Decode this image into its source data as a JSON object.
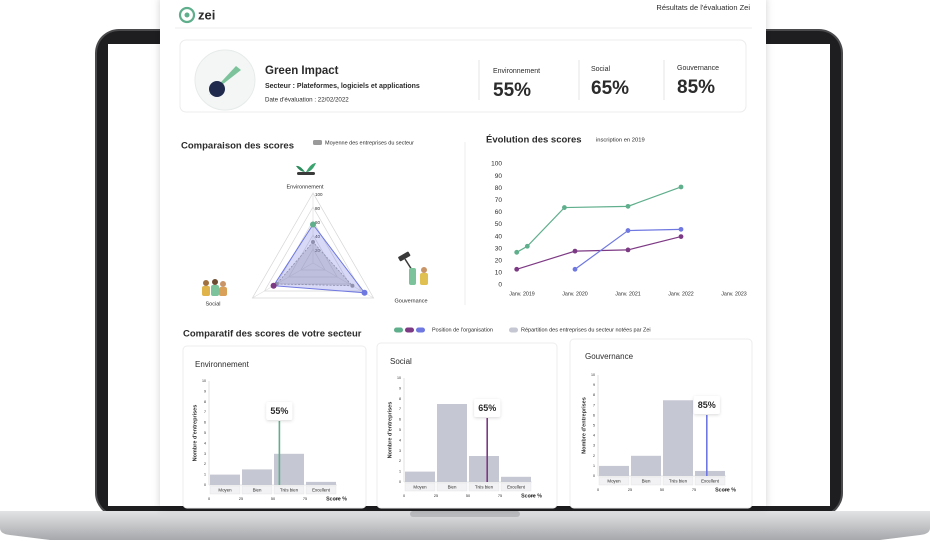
{
  "header": {
    "logo": "zei",
    "title": "Résultats de l'évaluation Zei"
  },
  "company": {
    "name": "Green Impact",
    "sector": "Secteur : Plateformes, logiciels et applications",
    "date": "Date d'évaluation : 22/02/2022"
  },
  "scores": [
    {
      "label": "Environnement",
      "value": "55%",
      "color": "#5fae8c"
    },
    {
      "label": "Social",
      "value": "65%",
      "color": "#7d3a84"
    },
    {
      "label": "Gouvernance",
      "value": "85%",
      "color": "#6f78e0"
    }
  ],
  "sections": {
    "comparison": "Comparatif des scores de votre secteur",
    "position_legend": "Position de l'organisation",
    "distribution_legend": "Répartition des entreprises du secteur notées par Zei",
    "distribution_color": "#c5c7d3"
  },
  "chart_data": [
    {
      "type": "radar",
      "title": "Comparaison des scores",
      "axes": [
        "Environnement",
        "Social",
        "Gouvernance"
      ],
      "ylim": [
        0,
        100
      ],
      "yticks": [
        20,
        40,
        60,
        80,
        100
      ],
      "series": [
        {
          "name": "Moyenne des entreprises du secteur",
          "color": "#9a9a9a",
          "values": [
            30,
            60,
            65
          ]
        },
        {
          "color": "#6f78e0",
          "values": [
            55,
            65,
            85
          ],
          "point_colors": [
            "#5fae8c",
            "#7d3a84",
            "#6f78e0"
          ]
        }
      ]
    },
    {
      "type": "line",
      "title": "Évolution des scores",
      "subtitle": "inscription en 2019",
      "xlim": [
        2018.8,
        2023.2
      ],
      "xticks": [
        {
          "value": 2019,
          "label": "Janv. 2019"
        },
        {
          "value": 2020,
          "label": "Janv. 2020"
        },
        {
          "value": 2021,
          "label": "Janv. 2021"
        },
        {
          "value": 2022,
          "label": "Janv. 2022"
        },
        {
          "value": 2023,
          "label": "Janv. 2023"
        }
      ],
      "ylim": [
        0,
        100
      ],
      "yticks": [
        0,
        10,
        20,
        30,
        40,
        50,
        60,
        70,
        80,
        90,
        100
      ],
      "series": [
        {
          "color": "#5fae8c",
          "x": [
            2018.9,
            2019.1,
            2019.8,
            2021,
            2022
          ],
          "values": [
            27,
            32,
            64,
            65,
            81
          ]
        },
        {
          "color": "#7d3a84",
          "x": [
            2018.9,
            2020,
            2021,
            2022
          ],
          "values": [
            13,
            28,
            29,
            40
          ]
        },
        {
          "color": "#6f78e0",
          "x": [
            2020,
            2021,
            2022
          ],
          "values": [
            13,
            45,
            46
          ]
        }
      ]
    },
    {
      "type": "histogram",
      "title": "Environnement",
      "ylabel": "Nombre d'entreprises",
      "xlabel": "Score %",
      "bins": [
        0,
        25,
        50,
        75,
        100
      ],
      "values": [
        1,
        1.5,
        3,
        0.3
      ],
      "categories": [
        "Moyen",
        "Bien",
        "Très bien",
        "Excellent"
      ],
      "color": "#c5c7d3",
      "xlim": [
        0,
        100
      ],
      "xticks": [
        0,
        25,
        50,
        75,
        100
      ],
      "ylim": [
        0,
        10
      ],
      "yticks": [
        0,
        1,
        2,
        3,
        4,
        5,
        6,
        7,
        8,
        9,
        10
      ],
      "marker": {
        "value": 55,
        "label": "55%",
        "color": "#5fae8c"
      }
    },
    {
      "type": "histogram",
      "title": "Social",
      "ylabel": "Nombre d'entreprises",
      "xlabel": "Score %",
      "bins": [
        0,
        25,
        50,
        75,
        100
      ],
      "values": [
        1,
        7.5,
        2.5,
        0.5
      ],
      "categories": [
        "Moyen",
        "Bien",
        "Très bien",
        "Excellent"
      ],
      "color": "#c5c7d3",
      "xlim": [
        0,
        100
      ],
      "xticks": [
        0,
        25,
        50,
        75,
        100
      ],
      "ylim": [
        0,
        10
      ],
      "yticks": [
        0,
        1,
        2,
        3,
        4,
        5,
        6,
        7,
        8,
        9,
        10
      ],
      "marker": {
        "value": 65,
        "label": "65%",
        "color": "#7d3a84"
      }
    },
    {
      "type": "histogram",
      "title": "Gouvernance",
      "ylabel": "Nombre d'entreprises",
      "xlabel": "Score %",
      "bins": [
        0,
        25,
        50,
        75,
        100
      ],
      "values": [
        1,
        2,
        7.5,
        0.5
      ],
      "categories": [
        "Moyen",
        "Bien",
        "Très bien",
        "Excellent"
      ],
      "color": "#c5c7d3",
      "xlim": [
        0,
        100
      ],
      "xticks": [
        0,
        25,
        50,
        75,
        100
      ],
      "ylim": [
        0,
        10
      ],
      "yticks": [
        0,
        1,
        2,
        3,
        4,
        5,
        6,
        7,
        8,
        9,
        10
      ],
      "marker": {
        "value": 85,
        "label": "85%",
        "color": "#6f78e0"
      }
    }
  ]
}
